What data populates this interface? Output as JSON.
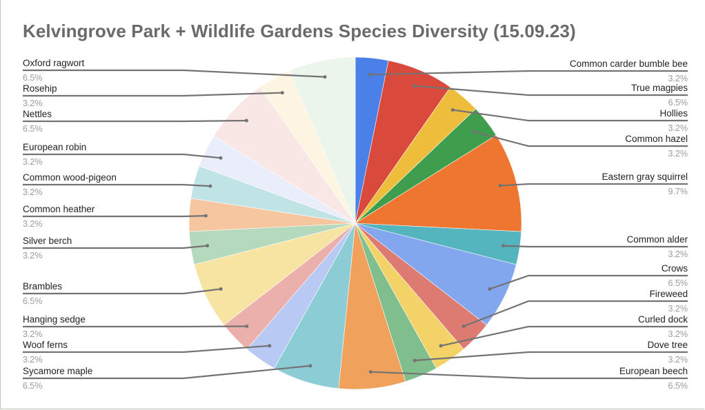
{
  "colors": {
    "background": "#ffffff",
    "title": "#6a6a6a",
    "leader": "#737373",
    "label": "#222222",
    "percent": "#9a9a9a"
  },
  "chart_data": {
    "type": "pie",
    "title": "Kelvingrove Park + Wildlife Gardens Species Diversity (15.09.23)",
    "start_angle_deg": 0,
    "direction": "clockwise",
    "slices": [
      {
        "label": "Common carder bumble bee",
        "value": 3.2,
        "percent_label": "3.2%",
        "color": "#4a80e8",
        "side": "right"
      },
      {
        "label": "True magpies",
        "value": 6.5,
        "percent_label": "6.5%",
        "color": "#d94a3c",
        "side": "right"
      },
      {
        "label": "Hollies",
        "value": 3.2,
        "percent_label": "3.2%",
        "color": "#efbd3c",
        "side": "right"
      },
      {
        "label": "Common hazel",
        "value": 3.2,
        "percent_label": "3.2%",
        "color": "#3f9e4e",
        "side": "right"
      },
      {
        "label": "Eastern gray squirrel",
        "value": 9.7,
        "percent_label": "9.7%",
        "color": "#ef7630",
        "side": "right"
      },
      {
        "label": "Common alder",
        "value": 3.2,
        "percent_label": "3.2%",
        "color": "#55b5bf",
        "side": "right"
      },
      {
        "label": "Crows",
        "value": 6.5,
        "percent_label": "6.5%",
        "color": "#83a7ee",
        "side": "right"
      },
      {
        "label": "Fireweed",
        "value": 3.2,
        "percent_label": "3.2%",
        "color": "#dd7a72",
        "side": "right"
      },
      {
        "label": "Curled dock",
        "value": 3.2,
        "percent_label": "3.2%",
        "color": "#f3d268",
        "side": "right"
      },
      {
        "label": "Dove tree",
        "value": 3.2,
        "percent_label": "3.2%",
        "color": "#80be8d",
        "side": "right"
      },
      {
        "label": "European beech",
        "value": 6.5,
        "percent_label": "6.5%",
        "color": "#f0a25d",
        "side": "right"
      },
      {
        "label": "Sycamore maple",
        "value": 6.5,
        "percent_label": "6.5%",
        "color": "#8ccdd5",
        "side": "left"
      },
      {
        "label": "Woof ferns",
        "value": 3.2,
        "percent_label": "3.2%",
        "color": "#b8caf4",
        "side": "left"
      },
      {
        "label": "Hanging sedge",
        "value": 3.2,
        "percent_label": "3.2%",
        "color": "#ebb0ab",
        "side": "left"
      },
      {
        "label": "Brambles",
        "value": 6.5,
        "percent_label": "6.5%",
        "color": "#f7e4a3",
        "side": "left"
      },
      {
        "label": "Silver berch",
        "value": 3.2,
        "percent_label": "3.2%",
        "color": "#b5d9bd",
        "side": "left"
      },
      {
        "label": "Common heather",
        "value": 3.2,
        "percent_label": "3.2%",
        "color": "#f5c69f",
        "side": "left"
      },
      {
        "label": "Common wood-pigeon",
        "value": 3.2,
        "percent_label": "3.2%",
        "color": "#c0e3e6",
        "side": "left"
      },
      {
        "label": "European robin",
        "value": 3.2,
        "percent_label": "3.2%",
        "color": "#e9eefa",
        "side": "left"
      },
      {
        "label": "Nettles",
        "value": 6.5,
        "percent_label": "6.5%",
        "color": "#f9e7e6",
        "side": "left"
      },
      {
        "label": "Rosehip",
        "value": 3.2,
        "percent_label": "3.2%",
        "color": "#fdf5e1",
        "side": "left"
      },
      {
        "label": "Oxford ragwort",
        "value": 6.5,
        "percent_label": "6.5%",
        "color": "#ecf5ec",
        "side": "left"
      }
    ]
  }
}
